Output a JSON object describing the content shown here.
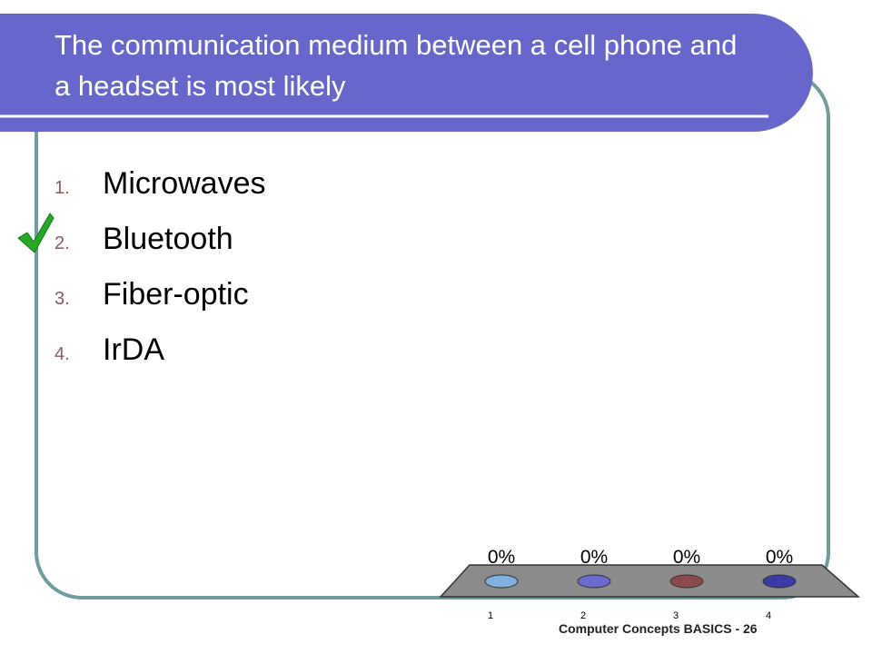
{
  "title": "The communication medium between a cell phone and a headset is most likely",
  "options": [
    {
      "number": "1.",
      "text": "Microwaves"
    },
    {
      "number": "2.",
      "text": "Bluetooth"
    },
    {
      "number": "3.",
      "text": "Fiber-optic"
    },
    {
      "number": "4.",
      "text": "IrDA"
    }
  ],
  "chart_data": {
    "type": "bar",
    "categories": [
      "1",
      "2",
      "3",
      "4"
    ],
    "values": [
      0,
      0,
      0,
      0
    ],
    "value_labels": [
      "0%",
      "0%",
      "0%",
      "0%"
    ],
    "colors": [
      "#7fb0e0",
      "#6a6ad0",
      "#8a4a4a",
      "#3a3aa8"
    ]
  },
  "footer": "Computer Concepts BASICS - 26"
}
